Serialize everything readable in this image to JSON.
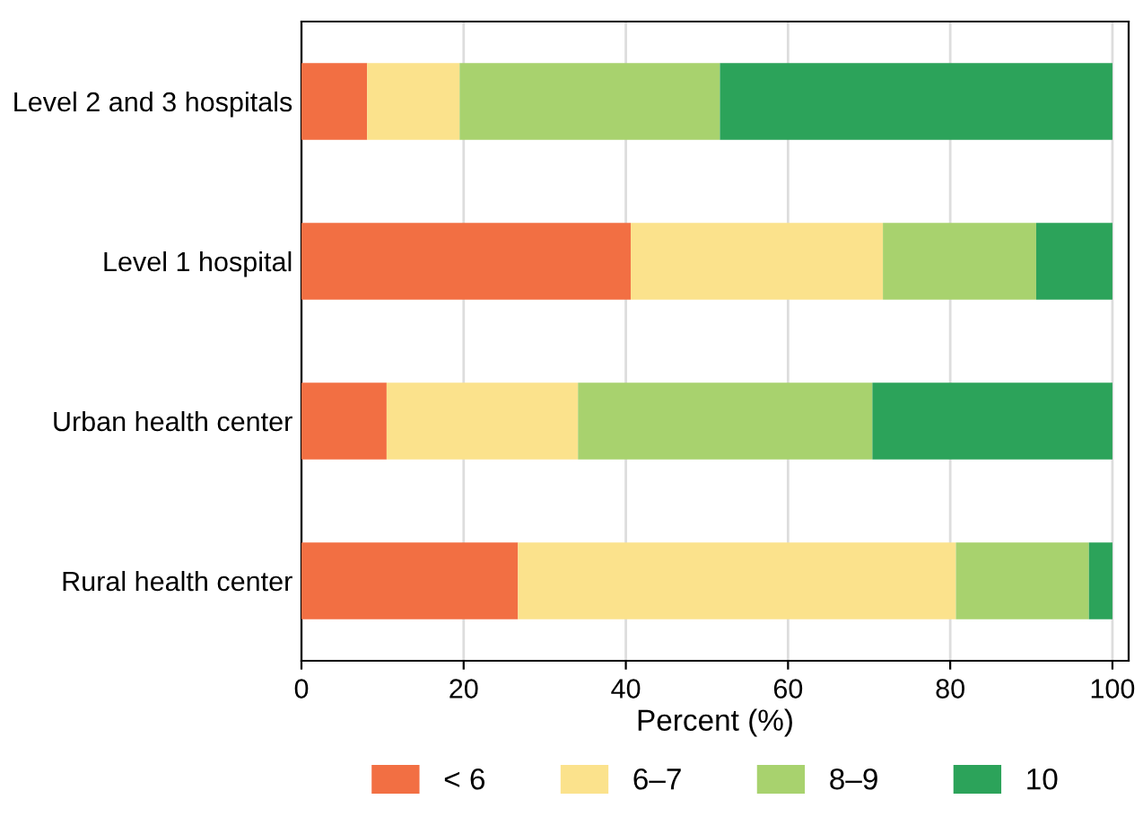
{
  "chart_data": {
    "type": "bar",
    "orientation": "horizontal",
    "stacked": true,
    "xlabel": "Percent (%)",
    "categories": [
      "Level 2 and 3 hospitals",
      "Level 1 hospital",
      "Urban health center",
      "Rural health center"
    ],
    "series": [
      {
        "name": "< 6",
        "color": "#f26f43",
        "values": [
          8.1,
          40.6,
          10.5,
          26.7
        ]
      },
      {
        "name": "6–7",
        "color": "#fbe28c",
        "values": [
          11.4,
          31.1,
          23.6,
          54.0
        ]
      },
      {
        "name": "8–9",
        "color": "#a8d26e",
        "values": [
          32.1,
          18.9,
          36.3,
          16.4
        ]
      },
      {
        "name": "10",
        "color": "#2ca35a",
        "values": [
          48.4,
          9.4,
          29.6,
          2.9
        ]
      }
    ],
    "xlim": [
      0,
      102
    ],
    "xticks": [
      0,
      20,
      40,
      60,
      80,
      100
    ],
    "grid": "x",
    "legend": "bottom"
  }
}
